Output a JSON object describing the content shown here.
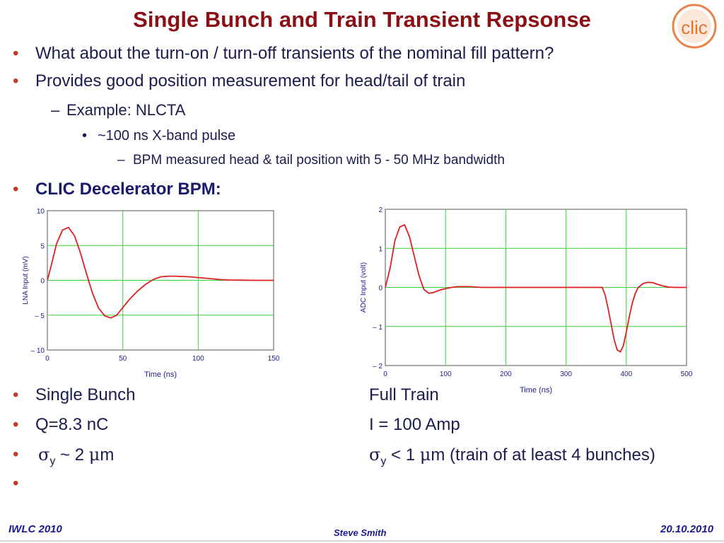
{
  "slide": {
    "title": "Single Bunch and  Train Transient Repsonse",
    "bullets": [
      "What about the turn-on / turn-off transients of the nominal fill pattern?",
      "Provides good position measurement  for head/tail of train",
      "Example: NLCTA",
      "~100 ns X-band pulse",
      "BPM measured head & tail position with 5 - 50 MHz bandwidth",
      "CLIC Decelerator BPM:"
    ],
    "bullet_marks": [
      "•",
      "–",
      "•",
      "–"
    ],
    "left_column": {
      "item1": "Single Bunch",
      "item2": "Q=8.3 nC",
      "item3_sigma": "σ",
      "item3_sub": "y",
      "item3_tail": " ~ 2 ",
      "item3_mu": "μ",
      "item3_unit": "m"
    },
    "right_column": {
      "item1": "Full Train",
      "item2": "I = 100 Amp",
      "item3_sigma": "σ",
      "item3_sub": "y",
      "item3_tail": " < 1 ",
      "item3_mu": "μ",
      "item3_unit": "m (train of at least 4 bunches)"
    },
    "footer": {
      "left": "IWLC 2010",
      "center": "Steve Smith",
      "right": "20.10.2010"
    },
    "logo_text": "clic",
    "colors": {
      "title": "#8b1016",
      "bullet": "#c0392b",
      "text": "#1c1c4e",
      "grid": "#3ad43a",
      "trace": "#e02020",
      "footer": "#1a1a8e"
    }
  },
  "chart_data": [
    {
      "type": "line",
      "xlabel": "Time (ns)",
      "ylabel": "LNA Input (mV)",
      "xlim": [
        0,
        150
      ],
      "ylim": [
        -10,
        10
      ],
      "xticks": [
        "0",
        "50",
        "100",
        "150"
      ],
      "yticks": [
        "10",
        "5",
        "0",
        "– 5",
        "– 10"
      ],
      "grid": true,
      "series": [
        {
          "x": [
            0,
            3,
            6,
            10,
            14,
            18,
            22,
            26,
            30,
            34,
            38,
            42,
            46,
            50,
            55,
            60,
            65,
            70,
            75,
            80,
            85,
            90,
            95,
            100,
            105,
            110,
            115,
            120,
            130,
            140,
            150
          ],
          "y": [
            0,
            2.5,
            5.2,
            7.2,
            7.6,
            6.4,
            3.9,
            0.9,
            -1.9,
            -4.0,
            -5.1,
            -5.4,
            -5.0,
            -3.9,
            -2.6,
            -1.5,
            -0.6,
            0.1,
            0.5,
            0.6,
            0.6,
            0.55,
            0.5,
            0.4,
            0.3,
            0.2,
            0.1,
            0.05,
            0.02,
            0.0,
            0.0
          ]
        }
      ]
    },
    {
      "type": "line",
      "xlabel": "Time (ns)",
      "ylabel": "ADC Input (volt)",
      "xlim": [
        0,
        500
      ],
      "ylim": [
        -2,
        2
      ],
      "xticks": [
        "0",
        "100",
        "200",
        "300",
        "400",
        "500"
      ],
      "yticks": [
        "2",
        "1",
        "0",
        "– 1",
        "– 2"
      ],
      "grid": true,
      "series": [
        {
          "x": [
            0,
            8,
            16,
            24,
            32,
            40,
            48,
            56,
            64,
            72,
            80,
            90,
            100,
            110,
            120,
            140,
            160,
            200,
            300,
            360,
            365,
            370,
            375,
            380,
            385,
            390,
            395,
            400,
            405,
            410,
            415,
            420,
            428,
            436,
            444,
            452,
            460,
            470,
            480,
            490,
            500
          ],
          "y": [
            0,
            0.5,
            1.2,
            1.55,
            1.6,
            1.3,
            0.8,
            0.3,
            -0.05,
            -0.15,
            -0.13,
            -0.07,
            -0.03,
            0.0,
            0.02,
            0.02,
            0.0,
            0.0,
            0.0,
            0.0,
            -0.2,
            -0.55,
            -0.95,
            -1.35,
            -1.6,
            -1.65,
            -1.5,
            -1.15,
            -0.75,
            -0.4,
            -0.15,
            0.0,
            0.1,
            0.13,
            0.12,
            0.08,
            0.04,
            0.01,
            0.0,
            0.0,
            0.0
          ]
        }
      ]
    }
  ]
}
